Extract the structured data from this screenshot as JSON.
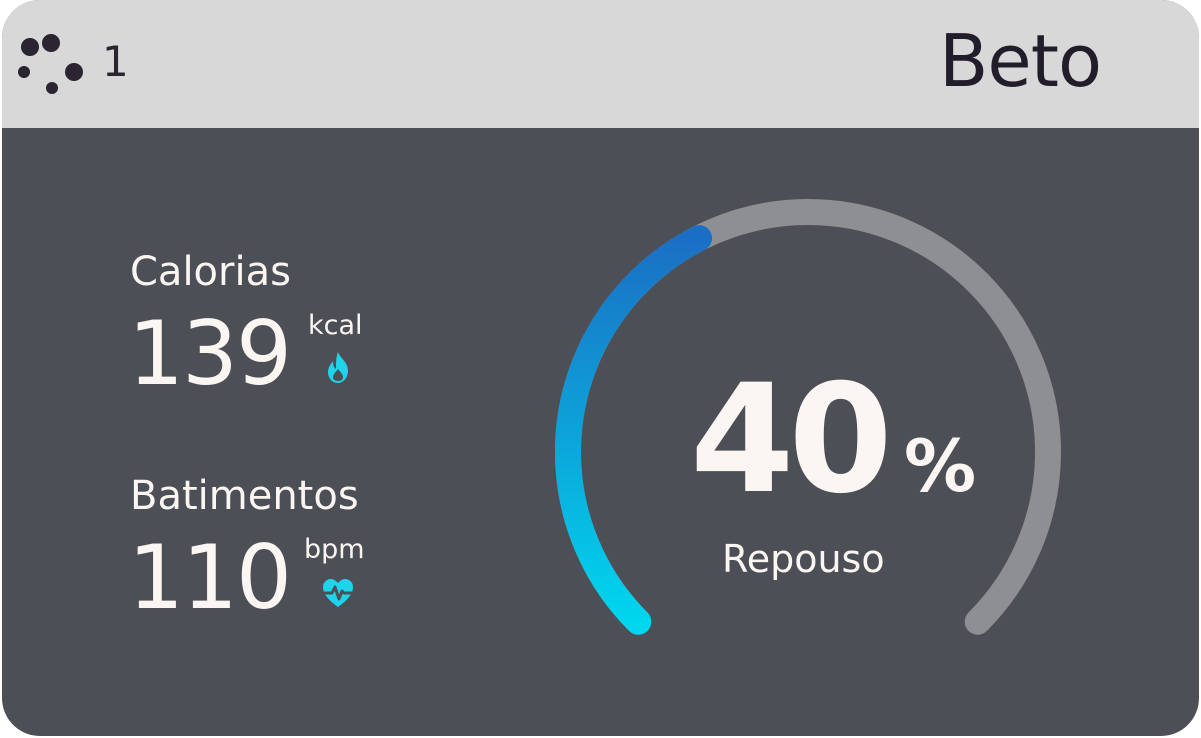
{
  "header": {
    "device_number": "1",
    "user_name": "Beto",
    "logo_icon": "dots-logo-icon"
  },
  "metrics": {
    "calories": {
      "label": "Calorias",
      "value": "139",
      "unit": "kcal",
      "icon": "flame-icon"
    },
    "heart_rate": {
      "label": "Batimentos",
      "value": "110",
      "unit": "bpm",
      "icon": "heart-pulse-icon"
    }
  },
  "gauge": {
    "value": "40",
    "percent": 40,
    "unit": "%",
    "status": "Repouso",
    "track_color": "#8e8f93",
    "fill_start_color": "#00d6ee",
    "fill_end_color": "#1a6fc4"
  },
  "colors": {
    "header_bg": "#d8d8d8",
    "card_bg": "#4d4f56",
    "text_light": "#fbf6f2",
    "accent_cyan": "#1fd3ea"
  }
}
